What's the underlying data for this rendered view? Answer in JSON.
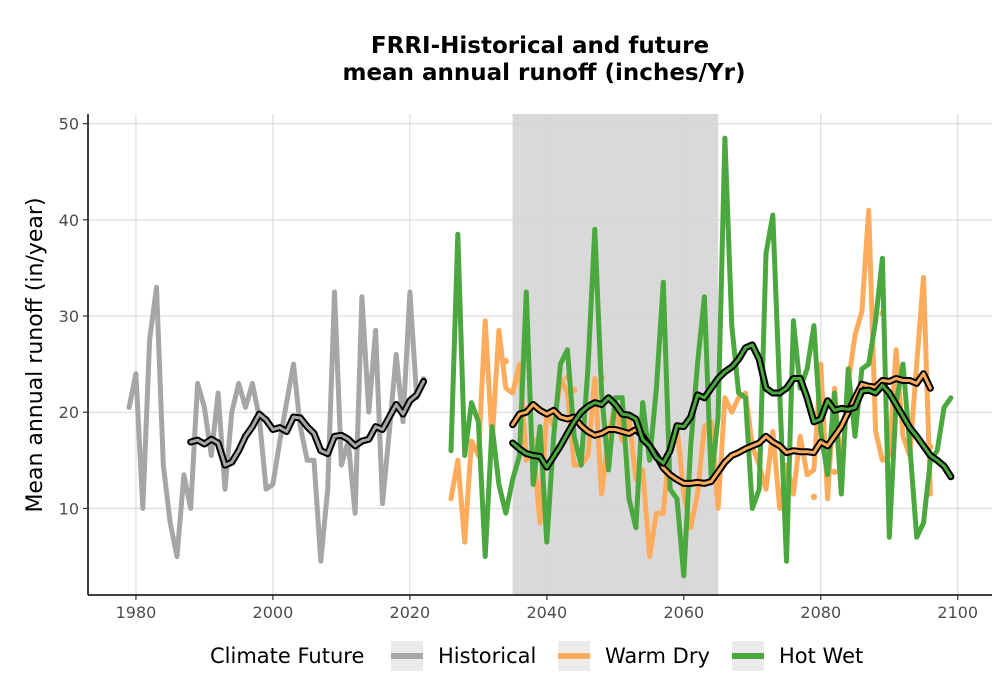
{
  "chart_data": {
    "type": "line",
    "title_line1": "FRRI-Historical and future",
    "title_line2": "mean annual runoff (inches/Yr)",
    "xlabel": "",
    "ylabel": "Mean annual runoff (in/year)",
    "xlim": [
      1973,
      2105
    ],
    "ylim": [
      1,
      51
    ],
    "x_ticks": [
      1980,
      2000,
      2020,
      2040,
      2060,
      2080,
      2100
    ],
    "y_ticks": [
      10,
      20,
      30,
      40,
      50
    ],
    "grid": true,
    "shaded_period": {
      "x_start": 2035,
      "x_end": 2065,
      "color": "#d9d9d9"
    },
    "legend": {
      "title": "Climate Future",
      "position": "bottom",
      "entries": [
        "Historical",
        "Warm Dry",
        "Hot Wet"
      ]
    },
    "series": [
      {
        "name": "Historical",
        "color": "#a6a6a6",
        "x_start": 1979,
        "values": [
          20.5,
          24,
          10,
          27.5,
          33,
          14.5,
          8.5,
          5,
          13.5,
          10,
          23,
          20.5,
          15.5,
          22,
          12,
          20,
          23,
          20.5,
          23,
          19.5,
          12,
          12.5,
          17,
          21,
          25,
          18.5,
          15,
          15,
          4.5,
          12,
          32.5,
          14.5,
          17,
          9.5,
          32,
          20,
          28.5,
          10.5,
          18,
          26,
          19,
          32.5,
          21.5,
          23.5
        ],
        "smooth_x_start": 1988,
        "smooth": [
          16.9,
          17.1,
          16.7,
          17.2,
          16.8,
          14.5,
          14.8,
          16.0,
          17.5,
          18.5,
          19.8,
          19.2,
          18.2,
          18.4,
          18.0,
          19.5,
          19.4,
          18.5,
          17.8,
          16.0,
          15.7,
          17.5,
          17.6,
          17.2,
          16.5,
          17.0,
          17.2,
          18.5,
          18.2,
          19.5,
          20.8,
          19.8,
          21.2,
          21.8,
          23.2
        ]
      },
      {
        "name": "Warm Dry",
        "color": "#ffab5c",
        "x_start": 2026,
        "values": [
          11,
          15,
          6.5,
          17,
          15.5,
          29.5,
          17,
          28.5,
          22.5,
          22,
          25,
          15,
          16.5,
          8.5,
          20,
          18.5,
          23.5,
          22,
          14.5,
          14.5,
          15.5,
          23.5,
          11.5,
          17.5,
          21,
          17,
          19.5,
          13,
          14,
          5,
          9.5,
          9.5,
          17,
          18.5,
          11.5,
          8,
          11.5,
          18.5,
          19,
          10,
          21.5,
          20,
          21.5,
          22,
          16.5,
          14.5,
          12,
          18,
          10,
          14.5,
          11.5,
          17.5,
          13.5,
          14,
          25,
          11,
          22.5,
          13.5,
          23,
          28,
          30.5,
          41,
          18,
          15,
          15.5,
          26.5,
          17.5,
          15.5,
          25,
          34,
          11.5
        ],
        "smooth_x_start": 2035,
        "smooth": [
          18.7,
          19.8,
          20.0,
          20.8,
          20.2,
          19.8,
          20.2,
          19.5,
          19.3,
          19.5,
          18.6,
          18.0,
          17.6,
          17.8,
          18.2,
          18.2,
          18.0,
          17.8,
          18.2,
          17.5,
          16.5,
          15.5,
          14.2,
          13.5,
          13.0,
          12.6,
          12.6,
          12.7,
          12.6,
          12.8,
          13.8,
          14.8,
          15.5,
          15.8,
          16.2,
          16.5,
          16.8,
          17.5,
          16.9,
          16.5,
          15.8,
          16.0,
          15.9,
          15.9,
          15.8,
          16.9,
          16.5,
          17.5,
          18.5,
          20.0,
          21.5,
          22.9,
          22.7,
          22.6,
          23.3,
          23.2,
          23.5,
          23.3,
          23.3,
          23.0,
          24.0,
          22.5
        ],
        "points": [
          {
            "x": 2030,
            "y": 15.8
          },
          {
            "x": 2032,
            "y": 16.7
          },
          {
            "x": 2034,
            "y": 25.3
          },
          {
            "x": 2036,
            "y": 19.6
          },
          {
            "x": 2038,
            "y": 17.1
          },
          {
            "x": 2043,
            "y": 23.6
          },
          {
            "x": 2044,
            "y": 22.3
          },
          {
            "x": 2048,
            "y": 23.6
          },
          {
            "x": 2051,
            "y": 19.1
          },
          {
            "x": 2075,
            "y": 11.7
          },
          {
            "x": 2079,
            "y": 11.2
          },
          {
            "x": 2082,
            "y": 13.8
          },
          {
            "x": 2084,
            "y": 22.4
          },
          {
            "x": 2089,
            "y": 30.3
          },
          {
            "x": 2096,
            "y": 16.4
          }
        ]
      },
      {
        "name": "Hot Wet",
        "color": "#4aa83f",
        "x_start": 2026,
        "values": [
          16,
          38.5,
          15.5,
          21,
          19,
          5,
          18.5,
          12.5,
          9.5,
          13,
          15.5,
          32.5,
          12.5,
          18.5,
          6.5,
          17.5,
          25,
          26.5,
          17.5,
          14.5,
          24.5,
          39,
          22,
          14,
          21.5,
          21.5,
          11,
          8,
          21,
          15,
          22.5,
          33.5,
          12,
          11,
          3,
          16.5,
          25,
          32,
          13,
          19.5,
          48.5,
          29,
          22,
          21.5,
          10,
          12,
          36.5,
          40.5,
          22,
          4.5,
          29.5,
          22.5,
          24.5,
          29,
          18,
          13.5,
          22,
          11.5,
          24.5,
          17.5,
          24.5,
          25,
          29.5,
          36,
          7,
          21,
          25,
          16.5,
          7,
          8.5,
          15,
          16,
          20.5,
          21.5
        ],
        "smooth_x_start": 2035,
        "smooth": [
          16.8,
          16.2,
          15.7,
          15.5,
          15.4,
          14.3,
          15.4,
          16.5,
          17.8,
          19.0,
          20.0,
          20.6,
          21.0,
          20.8,
          21.5,
          20.8,
          19.8,
          19.7,
          19.3,
          17.2,
          16.5,
          15.3,
          14.7,
          16.0,
          18.6,
          18.5,
          19.5,
          21.8,
          21.5,
          22.5,
          23.5,
          24.2,
          24.7,
          25.5,
          26.7,
          27.0,
          25.5,
          22.5,
          22.0,
          22.0,
          22.5,
          23.5,
          23.5,
          21.5,
          19.0,
          19.3,
          21.2,
          20.2,
          20.4,
          20.3,
          20.5,
          22.2,
          22.3,
          22.0,
          22.8,
          22.0,
          20.8,
          19.6,
          18.4,
          17.5,
          16.5,
          15.5,
          15.0,
          14.4,
          13.3
        ]
      }
    ]
  }
}
